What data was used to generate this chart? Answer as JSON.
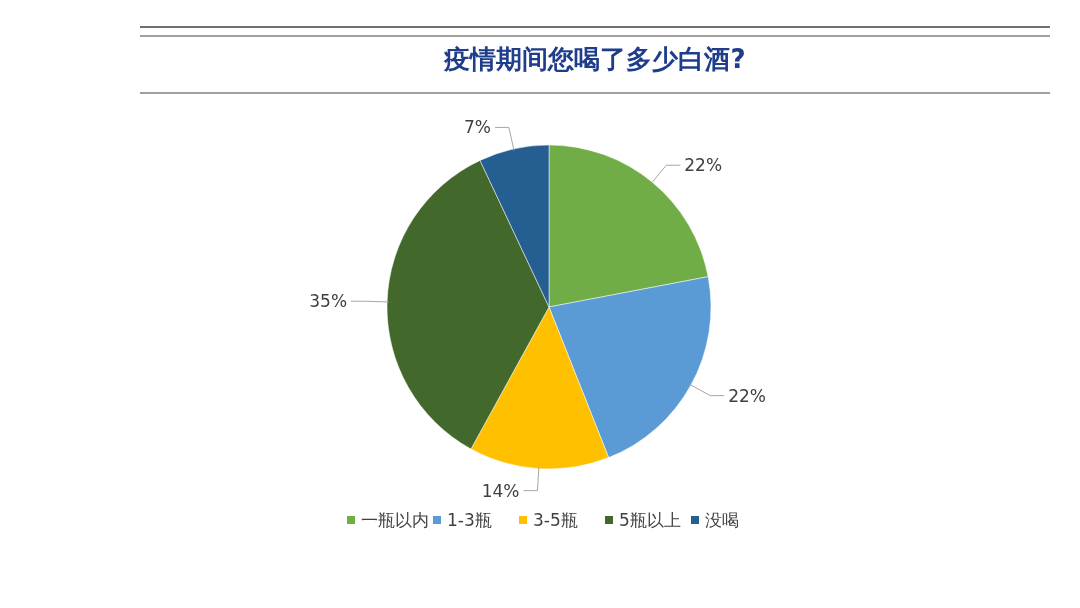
{
  "chart_data": {
    "type": "pie",
    "title": "疫情期间您喝了多少白酒?",
    "categories": [
      "一瓶以内",
      "1-3瓶",
      "3-5瓶",
      "5瓶以上",
      "没喝"
    ],
    "values": [
      22,
      22,
      14,
      35,
      7
    ],
    "colors": [
      "#70ad47",
      "#5b9bd5",
      "#ffc000",
      "#43682b",
      "#255e91"
    ],
    "value_labels": [
      "22%",
      "22%",
      "14%",
      "35%",
      "7%"
    ],
    "legend": "bottom"
  }
}
